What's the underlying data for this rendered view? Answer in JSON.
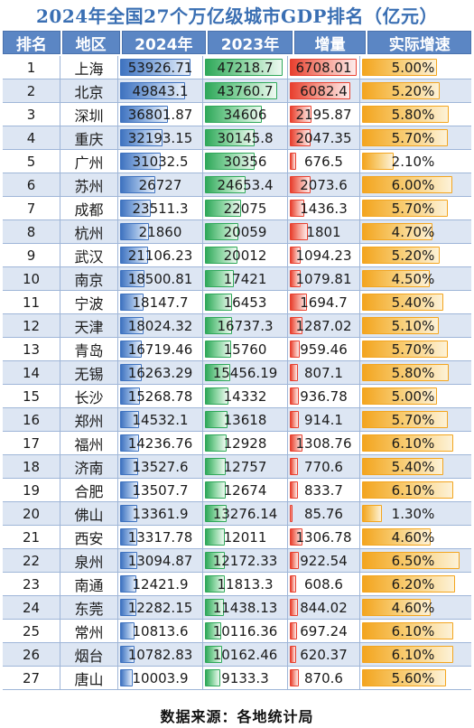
{
  "title": "2024年全国27个万亿级城市GDP排名（亿元）",
  "headers": [
    "排名",
    "地区",
    "2024年",
    "2023年",
    "增量",
    "实际增速"
  ],
  "footer": "数据来源：各地统计局",
  "colors": {
    "header_bg": "#5b86c4",
    "bar_2024": "#3f73c0",
    "bar_2023": "#2fa85a",
    "bar_increase": "#e8402f",
    "bar_growth": "#f3a51f",
    "title": "#3a6fb3"
  },
  "chart_data": {
    "type": "table",
    "title": "2024年全国27个万亿级城市GDP排名（亿元）",
    "columns": [
      "排名",
      "地区",
      "2024年",
      "2023年",
      "增量",
      "实际增速"
    ],
    "rows": [
      {
        "rank": "1",
        "city": "上海",
        "y2024": "53926.71",
        "y2023": "47218.7",
        "increase": "6708.01",
        "growth": "5.00%"
      },
      {
        "rank": "2",
        "city": "北京",
        "y2024": "49843.1",
        "y2023": "43760.7",
        "increase": "6082.4",
        "growth": "5.20%"
      },
      {
        "rank": "3",
        "city": "深圳",
        "y2024": "36801.87",
        "y2023": "34606",
        "increase": "2195.87",
        "growth": "5.80%"
      },
      {
        "rank": "4",
        "city": "重庆",
        "y2024": "32193.15",
        "y2023": "30145.8",
        "increase": "2047.35",
        "growth": "5.70%"
      },
      {
        "rank": "5",
        "city": "广州",
        "y2024": "31032.5",
        "y2023": "30356",
        "increase": "676.5",
        "growth": "2.10%"
      },
      {
        "rank": "6",
        "city": "苏州",
        "y2024": "26727",
        "y2023": "24653.4",
        "increase": "2073.6",
        "growth": "6.00%"
      },
      {
        "rank": "7",
        "city": "成都",
        "y2024": "23511.3",
        "y2023": "22075",
        "increase": "1436.3",
        "growth": "5.70%"
      },
      {
        "rank": "8",
        "city": "杭州",
        "y2024": "21860",
        "y2023": "20059",
        "increase": "1801",
        "growth": "4.70%"
      },
      {
        "rank": "9",
        "city": "武汉",
        "y2024": "21106.23",
        "y2023": "20012",
        "increase": "1094.23",
        "growth": "5.20%"
      },
      {
        "rank": "10",
        "city": "南京",
        "y2024": "18500.81",
        "y2023": "17421",
        "increase": "1079.81",
        "growth": "4.50%"
      },
      {
        "rank": "11",
        "city": "宁波",
        "y2024": "18147.7",
        "y2023": "16453",
        "increase": "1694.7",
        "growth": "5.40%"
      },
      {
        "rank": "12",
        "city": "天津",
        "y2024": "18024.32",
        "y2023": "16737.3",
        "increase": "1287.02",
        "growth": "5.10%"
      },
      {
        "rank": "13",
        "city": "青岛",
        "y2024": "16719.46",
        "y2023": "15760",
        "increase": "959.46",
        "growth": "5.70%"
      },
      {
        "rank": "14",
        "city": "无锡",
        "y2024": "16263.29",
        "y2023": "15456.19",
        "increase": "807.1",
        "growth": "5.80%"
      },
      {
        "rank": "15",
        "city": "长沙",
        "y2024": "15268.78",
        "y2023": "14332",
        "increase": "936.78",
        "growth": "5.00%"
      },
      {
        "rank": "16",
        "city": "郑州",
        "y2024": "14532.1",
        "y2023": "13618",
        "increase": "914.1",
        "growth": "5.70%"
      },
      {
        "rank": "17",
        "city": "福州",
        "y2024": "14236.76",
        "y2023": "12928",
        "increase": "1308.76",
        "growth": "6.10%"
      },
      {
        "rank": "18",
        "city": "济南",
        "y2024": "13527.6",
        "y2023": "12757",
        "increase": "770.6",
        "growth": "5.40%"
      },
      {
        "rank": "19",
        "city": "合肥",
        "y2024": "13507.7",
        "y2023": "12674",
        "increase": "833.7",
        "growth": "6.10%"
      },
      {
        "rank": "20",
        "city": "佛山",
        "y2024": "13361.9",
        "y2023": "13276.14",
        "increase": "85.76",
        "growth": "1.30%"
      },
      {
        "rank": "21",
        "city": "西安",
        "y2024": "13317.78",
        "y2023": "12011",
        "increase": "1306.78",
        "growth": "4.60%"
      },
      {
        "rank": "22",
        "city": "泉州",
        "y2024": "13094.87",
        "y2023": "12172.33",
        "increase": "922.54",
        "growth": "6.50%"
      },
      {
        "rank": "23",
        "city": "南通",
        "y2024": "12421.9",
        "y2023": "11813.3",
        "increase": "608.6",
        "growth": "6.20%"
      },
      {
        "rank": "24",
        "city": "东莞",
        "y2024": "12282.15",
        "y2023": "11438.13",
        "increase": "844.02",
        "growth": "4.60%"
      },
      {
        "rank": "25",
        "city": "常州",
        "y2024": "10813.6",
        "y2023": "10116.36",
        "increase": "697.24",
        "growth": "6.10%"
      },
      {
        "rank": "26",
        "city": "烟台",
        "y2024": "10782.83",
        "y2023": "10162.46",
        "increase": "620.37",
        "growth": "6.10%"
      },
      {
        "rank": "27",
        "city": "唐山",
        "y2024": "10003.9",
        "y2023": "9133.3",
        "increase": "870.6",
        "growth": "5.60%"
      }
    ]
  }
}
